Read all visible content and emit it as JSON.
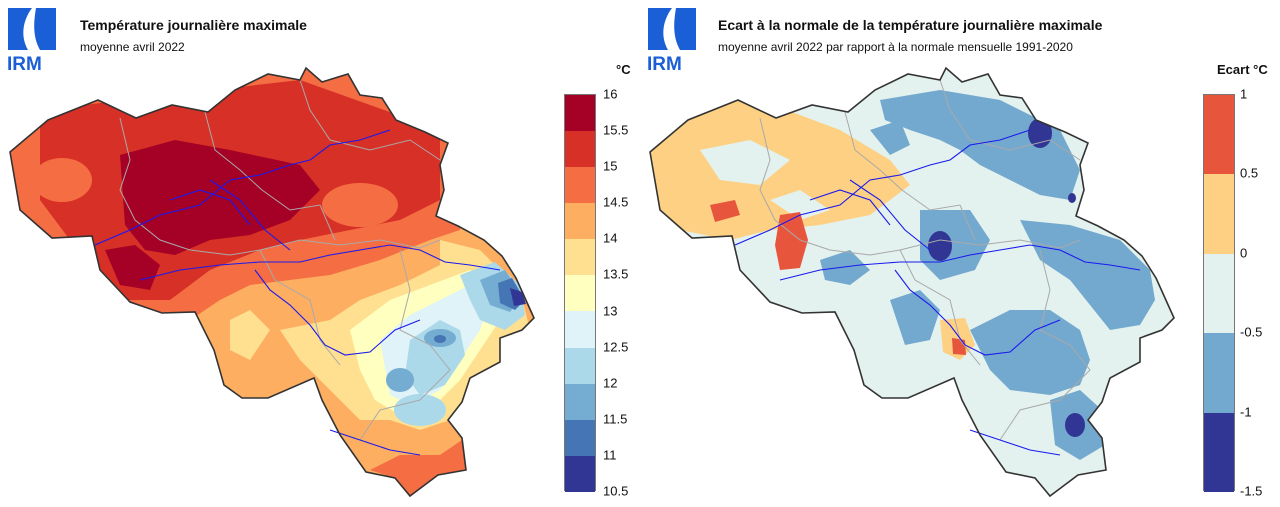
{
  "colors": {
    "border": "#333333",
    "provinces": "#a9a9a9",
    "rivers": "#1a1aee"
  },
  "left_panel": {
    "logo": {
      "text": "IRM",
      "icon": "irm-logo-icon"
    },
    "title": "Température journalière maximale",
    "subtitle": "moyenne avril 2022",
    "unit": "°C",
    "legend": {
      "ticks": [
        "16",
        "15.5",
        "15",
        "14.5",
        "14",
        "13.5",
        "13",
        "12.5",
        "12",
        "11.5",
        "11",
        "10.5"
      ],
      "colors": [
        "#a50026",
        "#d73027",
        "#f46d43",
        "#fdae61",
        "#fee090",
        "#ffffbf",
        "#e0f3f8",
        "#abd9e9",
        "#74add1",
        "#4575b4",
        "#313695"
      ]
    }
  },
  "right_panel": {
    "logo": {
      "text": "IRM",
      "icon": "irm-logo-icon"
    },
    "title": "Ecart à la normale de la température journalière maximale",
    "subtitle": "moyenne avril 2022 par rapport à la normale mensuelle 1991-2020",
    "unit": "Ecart °C",
    "legend": {
      "ticks": [
        "1",
        "0.5",
        "0",
        "-0.5",
        "-1",
        "-1.5"
      ],
      "colors": [
        "#e8553d",
        "#fdd083",
        "#e3f2ee",
        "#74a9cf",
        "#313695"
      ]
    }
  }
}
